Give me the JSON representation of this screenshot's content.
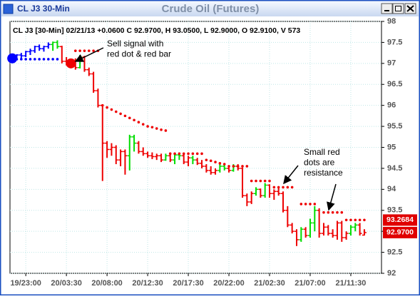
{
  "window": {
    "title": "CL J3 30-Min"
  },
  "chart_data": {
    "type": "ohlc",
    "title": "Crude Oil (Futures)",
    "subtitle": "CL J3 [30-Min] 02/21/13 +0.0600 C 92.9700, H 93.0500, L 92.9000, O 92.9100, V 573",
    "annotations": [
      {
        "lines": [
          "Sell signal with",
          "red dot & red bar"
        ]
      },
      {
        "lines": [
          "Small red",
          "dots are",
          "resistance"
        ]
      }
    ],
    "x": [
      0,
      1,
      2,
      3,
      4,
      5,
      6,
      7,
      8,
      9,
      10,
      11,
      12,
      13,
      14,
      15,
      16,
      17,
      18,
      19,
      20,
      21,
      22,
      23,
      24,
      25,
      26,
      27,
      28,
      29,
      30,
      31,
      32,
      33,
      34,
      35,
      36,
      37,
      38,
      39,
      40,
      41,
      42,
      43,
      44,
      45,
      46,
      47,
      48,
      49,
      50,
      51,
      52,
      53,
      54,
      55,
      56,
      57,
      58,
      59,
      60,
      61,
      62,
      63,
      64,
      65,
      66,
      67,
      68,
      69,
      70,
      71,
      72,
      73,
      74,
      75,
      76,
      77,
      78
    ],
    "open": [
      97.12,
      97.15,
      97.2,
      97.18,
      97.28,
      97.3,
      97.4,
      97.35,
      97.4,
      97.45,
      97.5,
      97.4,
      97.05,
      97.0,
      97.05,
      96.9,
      97.15,
      96.85,
      96.75,
      96.35,
      96.0,
      95.1,
      94.95,
      95.0,
      94.7,
      94.9,
      94.8,
      95.25,
      95.1,
      94.9,
      94.85,
      94.8,
      94.78,
      94.8,
      94.7,
      94.8,
      94.7,
      94.82,
      94.8,
      94.65,
      94.75,
      94.7,
      94.62,
      94.55,
      94.45,
      94.4,
      94.45,
      94.55,
      94.5,
      94.45,
      94.55,
      94.5,
      93.85,
      93.7,
      93.9,
      94.0,
      93.85,
      94.1,
      93.9,
      93.95,
      93.9,
      93.5,
      93.15,
      93.0,
      92.8,
      93.05,
      92.9,
      93.2,
      93.5,
      92.95,
      93.1,
      92.95,
      92.9,
      93.2,
      92.85,
      92.95,
      93.1,
      93.15,
      92.91
    ],
    "high": [
      97.18,
      97.22,
      97.25,
      97.3,
      97.35,
      97.42,
      97.45,
      97.42,
      97.5,
      97.52,
      97.55,
      97.42,
      97.15,
      97.1,
      97.12,
      97.2,
      97.18,
      96.9,
      96.8,
      96.4,
      96.0,
      95.15,
      95.1,
      95.05,
      94.95,
      94.95,
      95.3,
      95.3,
      95.15,
      95.0,
      94.9,
      94.88,
      94.85,
      94.85,
      94.85,
      94.88,
      94.85,
      94.88,
      94.85,
      94.8,
      94.8,
      94.75,
      94.7,
      94.6,
      94.55,
      94.5,
      94.6,
      94.6,
      94.55,
      94.6,
      94.6,
      94.52,
      93.9,
      93.95,
      94.05,
      94.02,
      94.15,
      94.12,
      94.0,
      94.05,
      93.95,
      93.6,
      93.2,
      93.05,
      93.1,
      93.1,
      93.3,
      93.6,
      93.55,
      93.2,
      93.15,
      93.05,
      93.25,
      93.25,
      93.0,
      93.15,
      93.2,
      93.2,
      93.05
    ],
    "low": [
      97.08,
      97.1,
      97.12,
      97.15,
      97.2,
      97.25,
      97.3,
      97.28,
      97.35,
      97.3,
      97.35,
      97.0,
      96.95,
      96.9,
      96.85,
      96.88,
      96.8,
      96.7,
      96.3,
      95.95,
      94.2,
      94.75,
      94.8,
      94.6,
      94.55,
      94.35,
      94.45,
      94.9,
      94.85,
      94.8,
      94.75,
      94.72,
      94.7,
      94.65,
      94.68,
      94.65,
      94.6,
      94.7,
      94.6,
      94.55,
      94.6,
      94.58,
      94.5,
      94.4,
      94.35,
      94.35,
      94.4,
      94.45,
      94.4,
      94.42,
      94.45,
      93.8,
      93.6,
      93.65,
      93.85,
      93.8,
      93.8,
      93.8,
      93.75,
      93.85,
      93.45,
      93.1,
      92.95,
      92.65,
      92.75,
      92.85,
      92.85,
      93.0,
      92.85,
      92.9,
      92.9,
      92.85,
      92.8,
      92.75,
      92.8,
      92.9,
      93.0,
      92.9,
      92.9
    ],
    "close": [
      97.15,
      97.2,
      97.18,
      97.28,
      97.3,
      97.4,
      97.35,
      97.4,
      97.45,
      97.5,
      97.4,
      97.05,
      97.0,
      97.05,
      96.9,
      97.15,
      96.85,
      96.75,
      96.35,
      96.0,
      95.1,
      94.95,
      95.0,
      94.7,
      94.9,
      94.8,
      95.25,
      95.1,
      94.9,
      94.85,
      94.8,
      94.78,
      94.8,
      94.7,
      94.8,
      94.7,
      94.82,
      94.8,
      94.65,
      94.75,
      94.7,
      94.62,
      94.55,
      94.45,
      94.4,
      94.45,
      94.55,
      94.5,
      94.45,
      94.55,
      94.5,
      93.85,
      93.7,
      93.9,
      94.0,
      93.85,
      94.1,
      93.9,
      93.95,
      93.9,
      93.5,
      93.15,
      93.0,
      92.8,
      93.05,
      92.9,
      93.2,
      93.5,
      92.95,
      93.1,
      92.95,
      92.9,
      93.2,
      92.85,
      92.95,
      93.1,
      93.15,
      92.95,
      92.97
    ],
    "colors": [
      "#0000ff",
      "#0000ff",
      "#0000ff",
      "#0000ff",
      "#0000ff",
      "#0000ff",
      "#0000ff",
      "#0000ff",
      "#0000ff",
      "#00dd00",
      "#00dd00",
      "#ee0000",
      "#ee0000",
      "#ee0000",
      "#ee0000",
      "#00dd00",
      "#ee0000",
      "#ee0000",
      "#ee0000",
      "#ee0000",
      "#ee0000",
      "#ee0000",
      "#ee0000",
      "#ee0000",
      "#ee0000",
      "#ee0000",
      "#00dd00",
      "#00dd00",
      "#ee0000",
      "#ee0000",
      "#ee0000",
      "#ee0000",
      "#ee0000",
      "#ee0000",
      "#00dd00",
      "#ee0000",
      "#00dd00",
      "#00dd00",
      "#ee0000",
      "#ee0000",
      "#00dd00",
      "#ee0000",
      "#ee0000",
      "#ee0000",
      "#ee0000",
      "#ee0000",
      "#00dd00",
      "#00dd00",
      "#ee0000",
      "#00dd00",
      "#ee0000",
      "#ee0000",
      "#ee0000",
      "#ee0000",
      "#00dd00",
      "#ee0000",
      "#00dd00",
      "#ee0000",
      "#ee0000",
      "#ee0000",
      "#ee0000",
      "#ee0000",
      "#ee0000",
      "#ee0000",
      "#00dd00",
      "#ee0000",
      "#00dd00",
      "#00dd00",
      "#ee0000",
      "#ee0000",
      "#ee0000",
      "#ee0000",
      "#ee0000",
      "#ee0000",
      "#ee0000",
      "#00dd00",
      "#00dd00",
      "#ee0000",
      "#ee0000"
    ],
    "series": [
      {
        "color": "#0000ff",
        "values": [
          97.12,
          97.1,
          97.1,
          97.1,
          97.1,
          97.1,
          97.1,
          97.1,
          97.1,
          97.1,
          97.1,
          null,
          null,
          null,
          null,
          null,
          null,
          null,
          null,
          null,
          null,
          null,
          null,
          null,
          null,
          null,
          null,
          null,
          null,
          null,
          null,
          null,
          null,
          null,
          null,
          null,
          null,
          null,
          null,
          null,
          null,
          null,
          null,
          null,
          null,
          null,
          null,
          null,
          null,
          null,
          null,
          null,
          null,
          null,
          null,
          null,
          null,
          null,
          null,
          null,
          null,
          null,
          null,
          null,
          null,
          null,
          null,
          null,
          null,
          null,
          null,
          null,
          null,
          null,
          null,
          null,
          null,
          null,
          null
        ]
      },
      {
        "color": "#ee0000",
        "values": [
          null,
          null,
          null,
          null,
          null,
          null,
          null,
          null,
          null,
          null,
          null,
          null,
          null,
          97.0,
          97.3,
          97.3,
          97.3,
          97.3,
          97.3,
          97.3,
          96.0,
          95.95,
          95.9,
          95.85,
          95.8,
          95.75,
          95.7,
          95.65,
          95.6,
          95.55,
          95.5,
          95.48,
          95.45,
          95.42,
          95.4,
          94.85,
          94.85,
          94.85,
          94.85,
          94.85,
          94.85,
          94.85,
          94.85,
          94.7,
          94.68,
          94.65,
          94.62,
          94.6,
          94.55,
          94.55,
          94.55,
          94.55,
          94.55,
          94.2,
          94.2,
          94.2,
          94.2,
          94.2,
          94.05,
          94.05,
          94.05,
          94.05,
          94.05,
          null,
          93.65,
          93.65,
          93.65,
          93.65,
          null,
          93.45,
          93.45,
          93.45,
          93.45,
          93.45,
          93.27,
          93.27,
          93.27,
          93.27,
          93.27
        ]
      }
    ],
    "price_labels": [
      93.2684,
      {
        "value": 92.97,
        "label": "92.9700"
      }
    ],
    "xlim": [
      -0.5,
      81.8
    ],
    "xticks": [
      {
        "value": 3,
        "label": "19/23:00"
      },
      {
        "value": 12,
        "label": "20/03:30"
      },
      {
        "value": 21,
        "label": "20/08:00"
      },
      {
        "value": 30,
        "label": "20/12:30"
      },
      {
        "value": 39,
        "label": "20/17:30"
      },
      {
        "value": 48,
        "label": "20/22:00"
      },
      {
        "value": 57,
        "label": "21/02:30"
      },
      {
        "value": 66,
        "label": "21/07:00"
      },
      {
        "value": 75,
        "label": "21/11:30"
      }
    ],
    "ylim": [
      92,
      98
    ],
    "yticks": [
      92,
      92.5,
      93,
      93.5,
      94,
      94.5,
      95,
      95.5,
      96,
      96.5,
      97,
      97.5,
      98
    ],
    "grid": true
  }
}
